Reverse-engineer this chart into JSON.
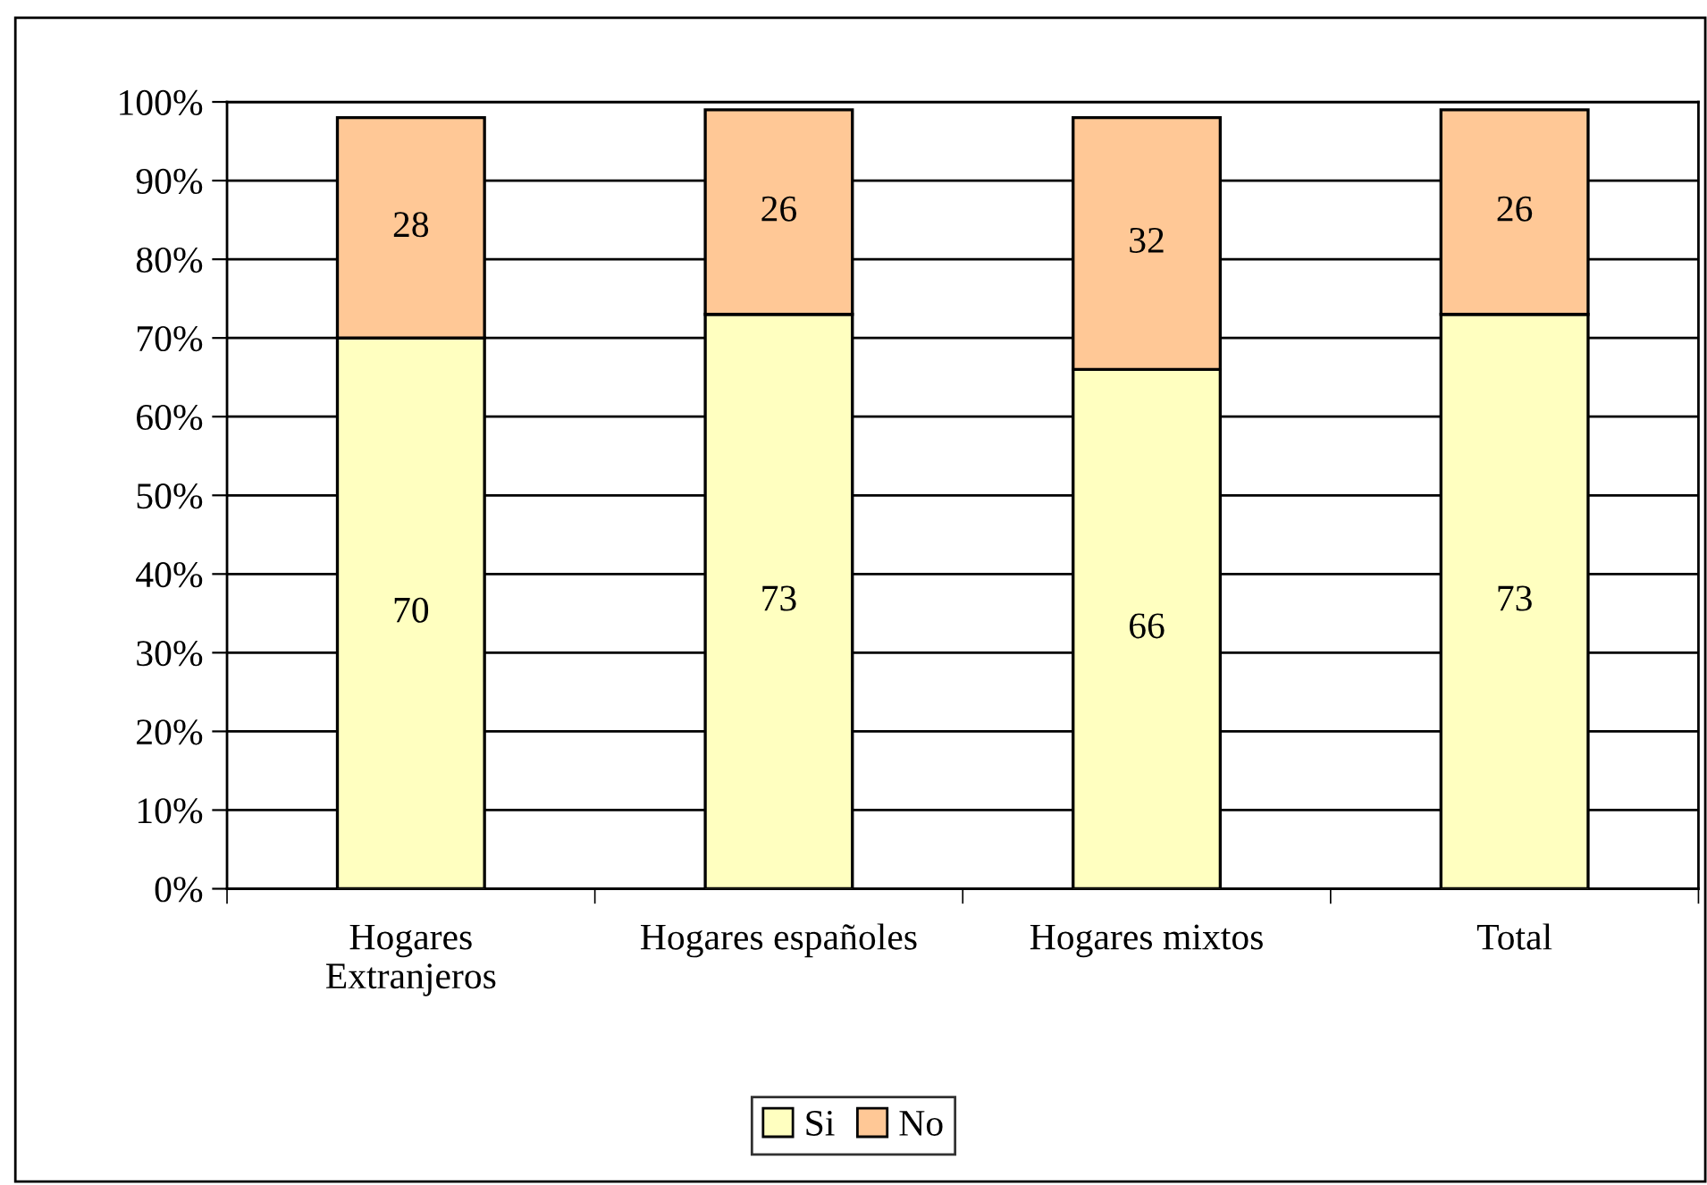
{
  "chart_data": {
    "type": "bar",
    "stacked": true,
    "categories": [
      "Hogares\nExtranjeros",
      "Hogares españoles",
      "Hogares mixtos",
      "Total"
    ],
    "series": [
      {
        "name": "Si",
        "color": "#ffffc0",
        "values": [
          70,
          73,
          66,
          73
        ]
      },
      {
        "name": "No",
        "color": "#ffc896",
        "values": [
          28,
          26,
          32,
          26
        ]
      }
    ],
    "data_labels": true,
    "ylim": [
      0,
      100
    ],
    "yticks": [
      {
        "value": 0,
        "label": "0%"
      },
      {
        "value": 10,
        "label": "10%"
      },
      {
        "value": 20,
        "label": "20%"
      },
      {
        "value": 30,
        "label": "30%"
      },
      {
        "value": 40,
        "label": "40%"
      },
      {
        "value": 50,
        "label": "50%"
      },
      {
        "value": 60,
        "label": "60%"
      },
      {
        "value": 70,
        "label": "70%"
      },
      {
        "value": 80,
        "label": "80%"
      },
      {
        "value": 90,
        "label": "90%"
      },
      {
        "value": 100,
        "label": "100%"
      }
    ],
    "grid": "y",
    "legend": "bottom"
  }
}
